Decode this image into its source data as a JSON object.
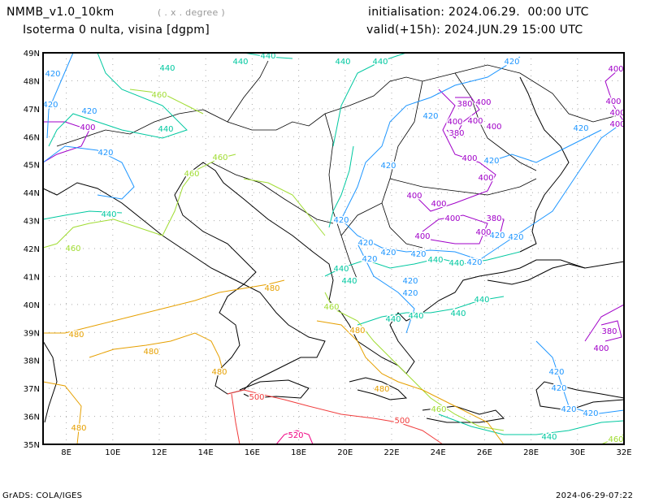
{
  "header": {
    "model": "NMMB_v1.0_10km",
    "units_note": "( . x . degree )",
    "variable": "Isoterma 0 nulta, visina [dgpm]",
    "init": "initialisation: 2024.06.29.  00:00 UTC",
    "valid": "valid(+15h): 2024.JUN.29 15:00 UTC"
  },
  "footer": {
    "left": "GrADS: COLA/IGES",
    "right": "2024-06-29-07:22"
  },
  "axes": {
    "lon_ticks": [
      "8E",
      "10E",
      "12E",
      "14E",
      "16E",
      "18E",
      "20E",
      "22E",
      "24E",
      "26E",
      "28E",
      "30E",
      "32E"
    ],
    "lat_ticks": [
      "35N",
      "36N",
      "37N",
      "38N",
      "39N",
      "40N",
      "41N",
      "42N",
      "43N",
      "44N",
      "45N",
      "46N",
      "47N",
      "48N",
      "49N"
    ]
  },
  "colors": {
    "380": "#a000c8",
    "400": "#a000c8",
    "420": "#1e96ff",
    "440": "#00c8a0",
    "460": "#a0dc32",
    "480": "#e6a000",
    "500": "#f03c3c",
    "520": "#f00082"
  },
  "contour_labels": [
    "420",
    "420",
    "420",
    "420",
    "420",
    "420",
    "420",
    "420",
    "420",
    "420",
    "420",
    "420",
    "420",
    "420",
    "420",
    "420",
    "420",
    "420",
    "420",
    "420",
    "420",
    "420",
    "420",
    "400",
    "400",
    "400",
    "400",
    "400",
    "400",
    "400",
    "400",
    "400",
    "400",
    "400",
    "400",
    "400",
    "400",
    "400",
    "400",
    "400",
    "380",
    "380",
    "380",
    "380",
    "440",
    "440",
    "440",
    "440",
    "440",
    "440",
    "440",
    "440",
    "440",
    "440",
    "440",
    "440",
    "440",
    "440",
    "440",
    "440",
    "460",
    "460",
    "460",
    "460",
    "460",
    "460",
    "460",
    "480",
    "480",
    "480",
    "480",
    "480",
    "480",
    "480",
    "500",
    "500",
    "520"
  ]
}
